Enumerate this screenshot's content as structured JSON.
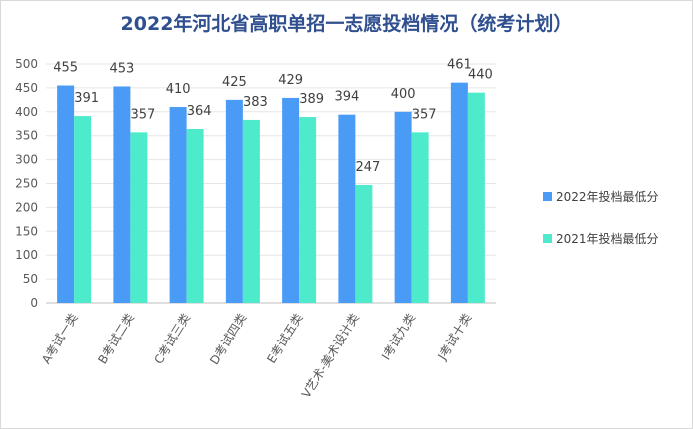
{
  "chart_data": {
    "type": "bar",
    "title": "2022年河北省高职单招一志愿投档情况（统考计划）",
    "categories": [
      "A考试一类",
      "B考试二类",
      "C考试三类",
      "D考试四类",
      "E考试五类",
      "V艺术-美术设计类",
      "I考试九类",
      "J考试十类"
    ],
    "series": [
      {
        "name": "2022年投档最低分",
        "values": [
          455,
          453,
          410,
          425,
          429,
          394,
          400,
          461
        ],
        "color": "#4a9bf5"
      },
      {
        "name": "2021年投档最低分",
        "values": [
          391,
          357,
          364,
          383,
          389,
          247,
          357,
          440
        ],
        "color": "#4deacb"
      }
    ],
    "ylim": [
      0,
      500
    ],
    "yticks": [
      0,
      50,
      100,
      150,
      200,
      250,
      300,
      350,
      400,
      450,
      500
    ],
    "grid": true,
    "legend": "right"
  }
}
